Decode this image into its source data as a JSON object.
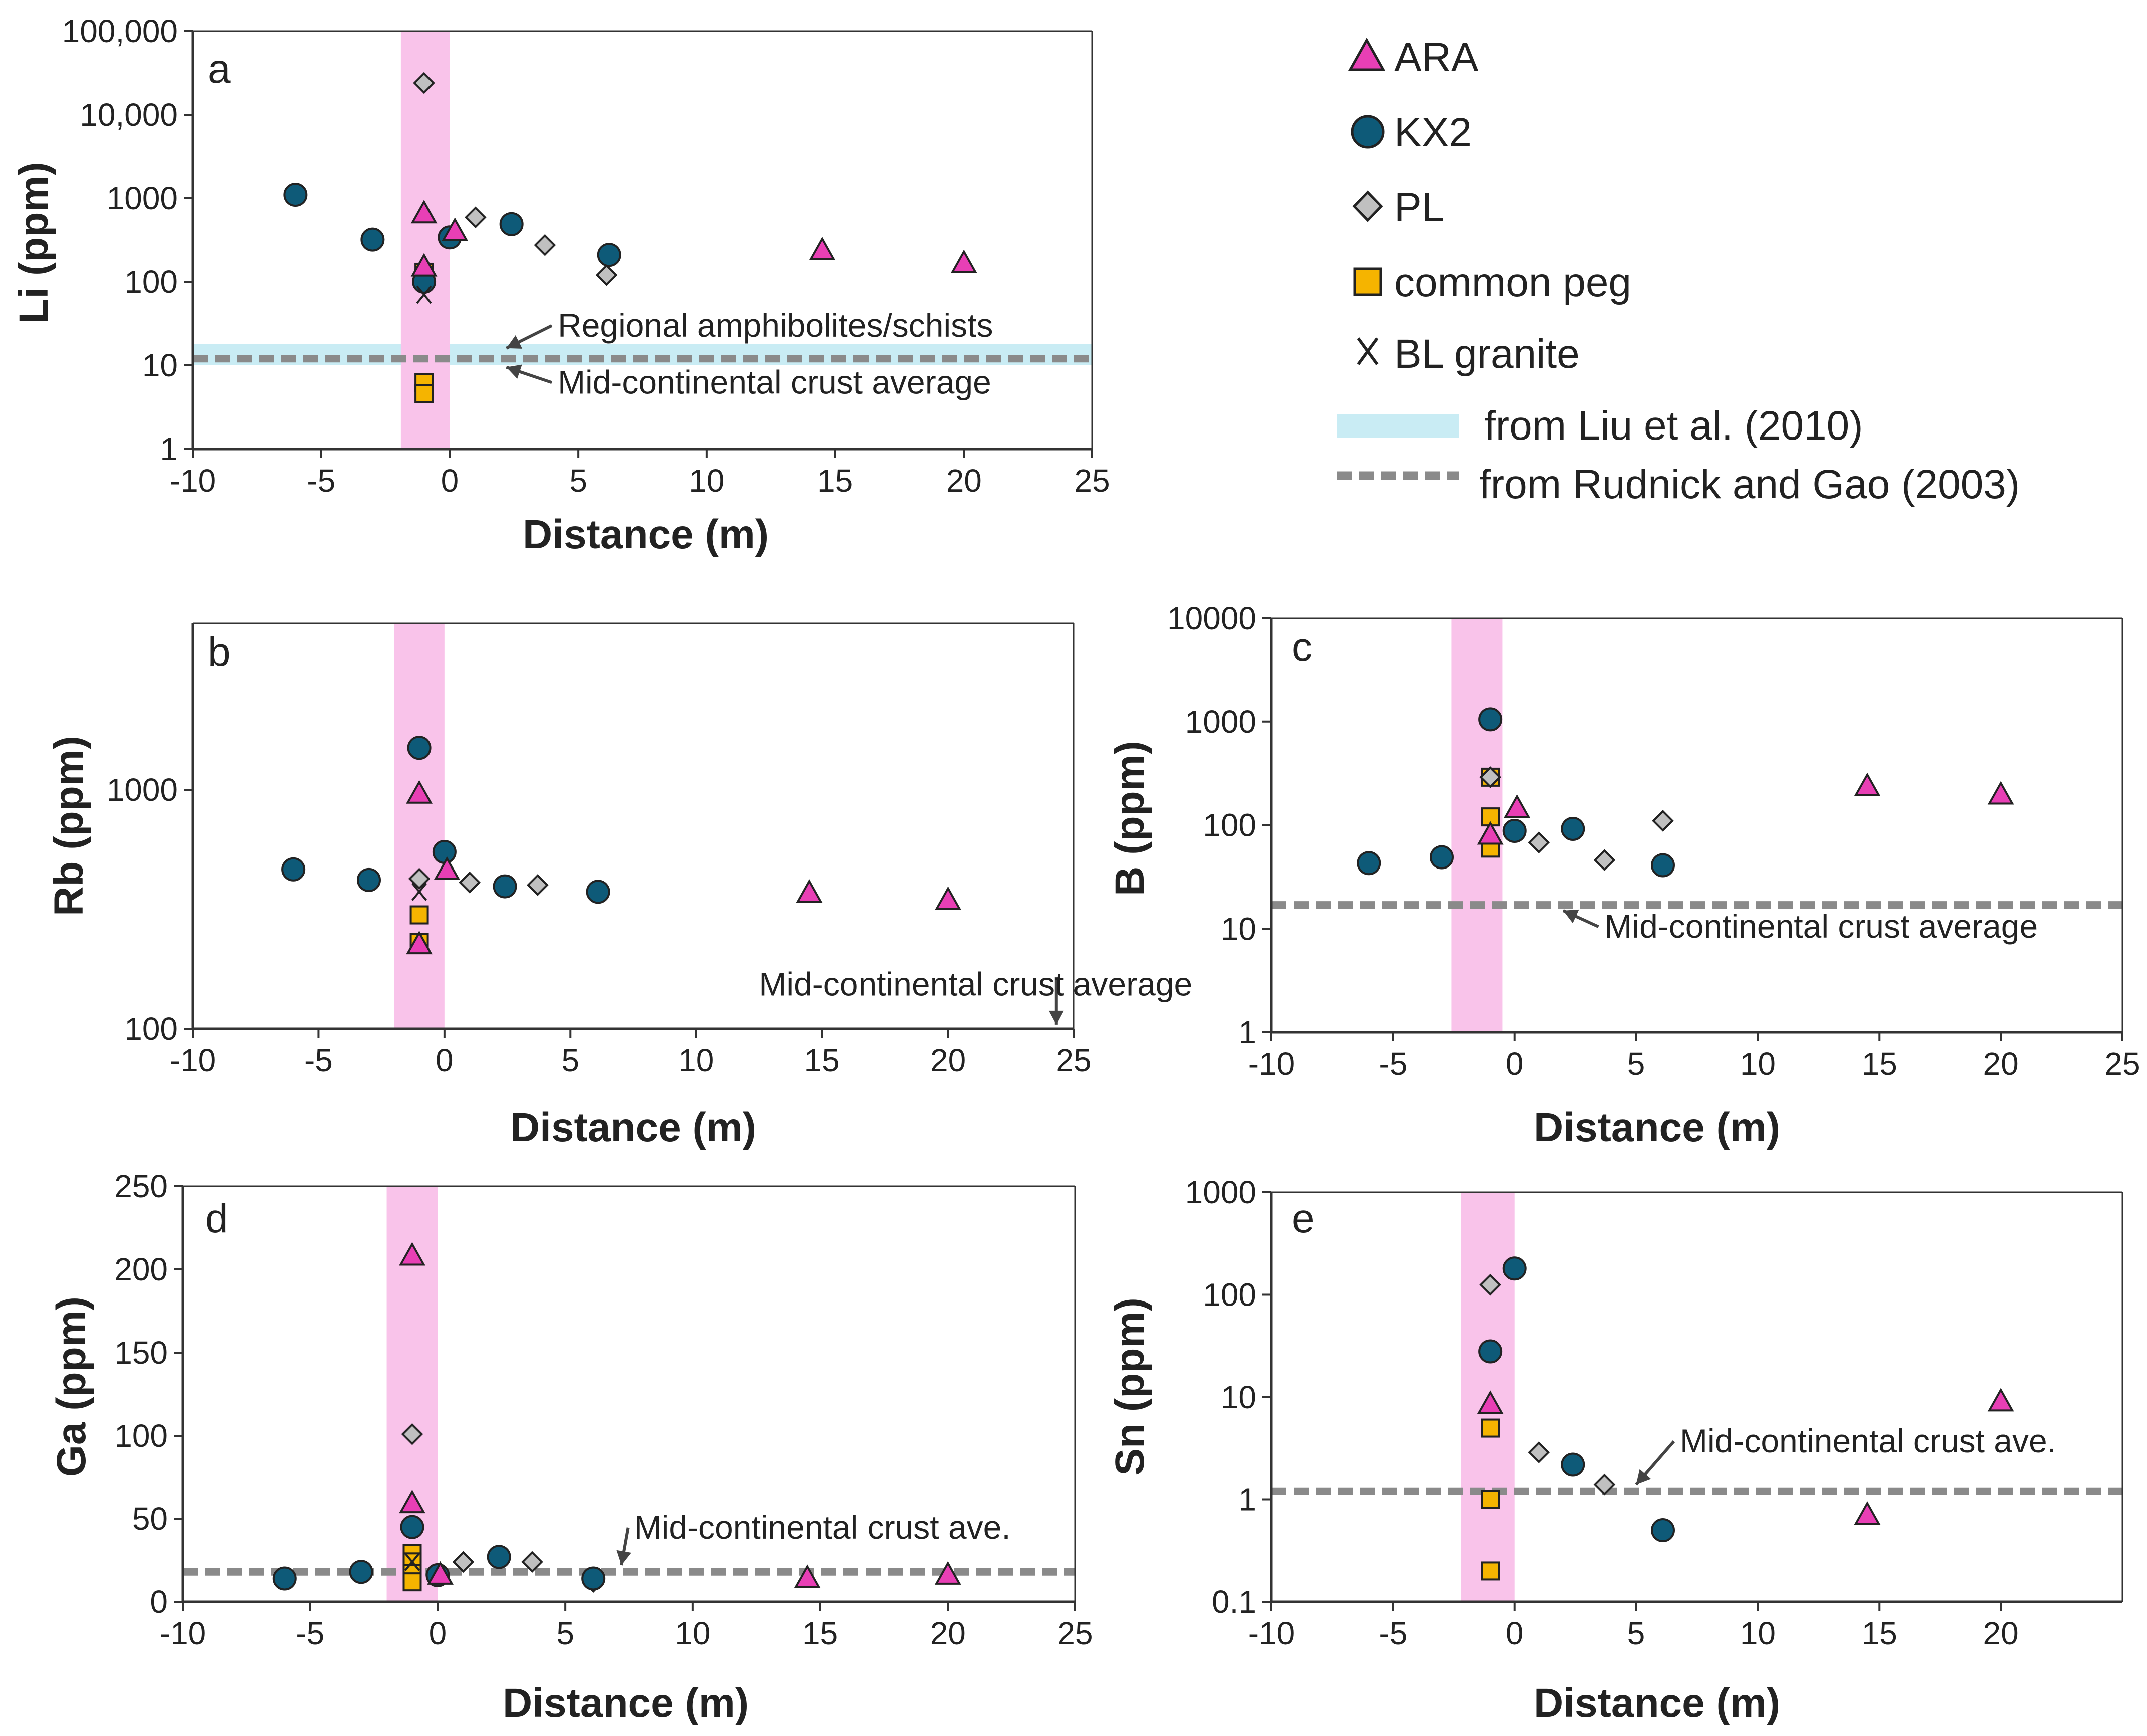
{
  "figure": {
    "legend": {
      "items": [
        {
          "key": "ARA",
          "label": "ARA",
          "marker": "triangle",
          "color": "#e83fb5"
        },
        {
          "key": "KX2",
          "label": "KX2",
          "marker": "circle",
          "color": "#0e5a78"
        },
        {
          "key": "PL",
          "label": "PL",
          "marker": "diamond",
          "color": "#c0c0c0"
        },
        {
          "key": "PEG",
          "label": "common peg",
          "marker": "square",
          "color": "#f5b400"
        },
        {
          "key": "BL",
          "label": "BL granite",
          "marker": "x",
          "color": "#222222"
        }
      ],
      "band_label": "from Liu et al. (2010)",
      "dash_label": "from Rudnick and Gao (2003)"
    },
    "colors": {
      "pegmatite_band": "#f9c3ea",
      "liu_band": "#c9ecf4",
      "rudnick_line": "#8a8a8a",
      "axis": "#333333"
    }
  },
  "chart_data": [
    {
      "id": "a",
      "panel_label": "a",
      "type": "scatter",
      "xlabel": "Distance (m)",
      "ylabel": "Li (ppm)",
      "yscale": "log",
      "xlim": [
        -10,
        25
      ],
      "ylim": [
        1,
        100000
      ],
      "xticks": [
        -10,
        -5,
        0,
        5,
        10,
        15,
        20,
        25
      ],
      "xtick_labels": [
        "-10",
        "-5",
        "0",
        "5",
        "10",
        "15",
        "20",
        "25"
      ],
      "yticks": [
        1,
        10,
        100,
        1000,
        10000,
        100000
      ],
      "ytick_labels": [
        "1",
        "10",
        "100",
        "1000",
        "10,000",
        "100,000"
      ],
      "pegmatite_band": [
        -1.9,
        0
      ],
      "liu_band": [
        10,
        18
      ],
      "rudnick_line": 12,
      "annotations": [
        {
          "text": "Regional amphibolites/schists",
          "x": 4.2,
          "y": 22,
          "arrow_to": [
            2.2,
            16
          ]
        },
        {
          "text": "Mid-continental crust average",
          "x": 4.2,
          "y": 4.6,
          "arrow_to": [
            2.2,
            9.5
          ]
        }
      ],
      "series": [
        {
          "name": "ARA",
          "points": [
            [
              -1,
              650
            ],
            [
              -1,
              150
            ],
            [
              0.2,
              400
            ],
            [
              14.5,
              235
            ],
            [
              20,
              165
            ]
          ]
        },
        {
          "name": "KX2",
          "points": [
            [
              -6,
              1100
            ],
            [
              -3,
              320
            ],
            [
              -1,
              100
            ],
            [
              0,
              340
            ],
            [
              2.4,
              490
            ],
            [
              6.2,
              210
            ]
          ]
        },
        {
          "name": "PL",
          "points": [
            [
              -1,
              24000
            ],
            [
              1,
              590
            ],
            [
              3.7,
              275
            ],
            [
              6.1,
              120
            ]
          ]
        },
        {
          "name": "PEG",
          "points": [
            [
              -1,
              130
            ],
            [
              -1,
              110
            ],
            [
              -1,
              6.2
            ],
            [
              -1,
              4.6
            ]
          ]
        },
        {
          "name": "BL",
          "points": [
            [
              -1,
              70
            ]
          ]
        }
      ]
    },
    {
      "id": "b",
      "panel_label": "b",
      "type": "scatter",
      "xlabel": "Distance (m)",
      "ylabel": "Rb (ppm)",
      "yscale": "log",
      "xlim": [
        -10,
        25
      ],
      "ylim": [
        100,
        5000
      ],
      "xticks": [
        -10,
        -5,
        0,
        5,
        10,
        15,
        20,
        25
      ],
      "xtick_labels": [
        "-10",
        "-5",
        "0",
        "5",
        "10",
        "15",
        "20",
        "25"
      ],
      "yticks": [
        100,
        1000
      ],
      "ytick_labels": [
        "100",
        "1000"
      ],
      "pegmatite_band": [
        -2,
        0
      ],
      "annotations": [
        {
          "text": "Mid-continental crust average",
          "x": 12.5,
          "y": 138,
          "arrow_to": [
            24.3,
            104
          ],
          "arrow_from": [
            24.3,
            165
          ]
        }
      ],
      "series": [
        {
          "name": "ARA",
          "points": [
            [
              -1,
              960
            ],
            [
              0.1,
              460
            ],
            [
              -1,
              225
            ],
            [
              14.5,
              370
            ],
            [
              20,
              345
            ]
          ]
        },
        {
          "name": "KX2",
          "points": [
            [
              -6,
              465
            ],
            [
              -3,
              420
            ],
            [
              -1,
              1500
            ],
            [
              0,
              550
            ],
            [
              2.4,
              395
            ],
            [
              6.1,
              375
            ]
          ]
        },
        {
          "name": "PL",
          "points": [
            [
              -1,
              425
            ],
            [
              1,
              410
            ],
            [
              3.7,
              400
            ],
            [
              6.1,
              370
            ]
          ]
        },
        {
          "name": "PEG",
          "points": [
            [
              -1,
              300
            ],
            [
              -1,
              230
            ]
          ]
        },
        {
          "name": "BL",
          "points": [
            [
              -1,
              375
            ]
          ]
        }
      ]
    },
    {
      "id": "c",
      "panel_label": "c",
      "type": "scatter",
      "xlabel": "Distance (m)",
      "ylabel": "B (ppm)",
      "yscale": "log",
      "xlim": [
        -10,
        25
      ],
      "ylim": [
        1,
        10000
      ],
      "xticks": [
        -10,
        -5,
        0,
        5,
        10,
        15,
        20,
        25
      ],
      "xtick_labels": [
        "-10",
        "-5",
        "0",
        "5",
        "10",
        "15",
        "20",
        "25"
      ],
      "yticks": [
        1,
        10,
        100,
        1000,
        10000
      ],
      "ytick_labels": [
        "1",
        "10",
        "100",
        "1000",
        "10000"
      ],
      "pegmatite_band": [
        -2.6,
        -0.5
      ],
      "rudnick_line": 17,
      "annotations": [
        {
          "text": "Mid-continental crust average",
          "x": 3.7,
          "y": 8.2,
          "arrow_to": [
            2,
            15
          ]
        }
      ],
      "series": [
        {
          "name": "ARA",
          "points": [
            [
              -1,
              80
            ],
            [
              0.1,
              145
            ],
            [
              14.5,
              235
            ],
            [
              20,
              195
            ]
          ]
        },
        {
          "name": "KX2",
          "points": [
            [
              -6,
              43
            ],
            [
              -3,
              49
            ],
            [
              -1,
              1050
            ],
            [
              0,
              88
            ],
            [
              2.4,
              92
            ],
            [
              6.1,
              41
            ]
          ]
        },
        {
          "name": "PL",
          "points": [
            [
              -1,
              290
            ],
            [
              1,
              68
            ],
            [
              3.7,
              46
            ],
            [
              6.1,
              110
            ]
          ]
        },
        {
          "name": "PEG",
          "points": [
            [
              -1,
              290
            ],
            [
              -1,
              120
            ],
            [
              -1,
              60
            ]
          ]
        },
        {
          "name": "BL",
          "points": []
        }
      ]
    },
    {
      "id": "d",
      "panel_label": "d",
      "type": "scatter",
      "xlabel": "Distance (m)",
      "ylabel": "Ga (ppm)",
      "yscale": "linear",
      "xlim": [
        -10,
        25
      ],
      "ylim": [
        0,
        250
      ],
      "xticks": [
        -10,
        -5,
        0,
        5,
        10,
        15,
        20,
        25
      ],
      "xtick_labels": [
        "-10",
        "-5",
        "0",
        "5",
        "10",
        "15",
        "20",
        "25"
      ],
      "yticks": [
        0,
        50,
        100,
        150,
        200,
        250
      ],
      "ytick_labels": [
        "0",
        "50",
        "100",
        "150",
        "200",
        "250"
      ],
      "pegmatite_band": [
        -2,
        0
      ],
      "rudnick_line": 18,
      "annotations": [
        {
          "text": "Mid-continental crust ave.",
          "x": 7.7,
          "y": 38,
          "arrow_to": [
            7.2,
            22
          ]
        }
      ],
      "series": [
        {
          "name": "ARA",
          "points": [
            [
              -1,
              208
            ],
            [
              -1,
              59
            ],
            [
              0.1,
              16
            ],
            [
              14.5,
              14
            ],
            [
              20,
              16
            ]
          ]
        },
        {
          "name": "KX2",
          "points": [
            [
              -6,
              14
            ],
            [
              -3,
              18
            ],
            [
              -1,
              45
            ],
            [
              0,
              16
            ],
            [
              2.4,
              27
            ],
            [
              6.1,
              14
            ]
          ]
        },
        {
          "name": "PL",
          "points": [
            [
              -1,
              101
            ],
            [
              1,
              24
            ],
            [
              3.7,
              24
            ],
            [
              6.1,
              12
            ]
          ]
        },
        {
          "name": "PEG",
          "points": [
            [
              -1,
              29
            ],
            [
              -1,
              24
            ],
            [
              -1,
              17
            ],
            [
              -1,
              12
            ]
          ]
        },
        {
          "name": "BL",
          "points": [
            [
              -1,
              24
            ]
          ]
        }
      ]
    },
    {
      "id": "e",
      "panel_label": "e",
      "type": "scatter",
      "xlabel": "Distance (m)",
      "ylabel": "Sn (ppm)",
      "yscale": "log",
      "xlim": [
        -10,
        25
      ],
      "ylim": [
        0.1,
        1000
      ],
      "xticks": [
        -10,
        -5,
        0,
        5,
        10,
        15,
        20
      ],
      "xtick_labels": [
        "-10",
        "-5",
        "0",
        "5",
        "10",
        "15",
        "20"
      ],
      "yticks": [
        0.1,
        1,
        10,
        100,
        1000
      ],
      "ytick_labels": [
        "0.1",
        "1",
        "10",
        "100",
        "1000"
      ],
      "pegmatite_band": [
        -2.2,
        0
      ],
      "rudnick_line": 1.2,
      "annotations": [
        {
          "text": "Mid-continental crust ave.",
          "x": 6.8,
          "y": 2.9,
          "arrow_to": [
            5,
            1.4
          ]
        }
      ],
      "series": [
        {
          "name": "ARA",
          "points": [
            [
              -1,
              8.5
            ],
            [
              14.5,
              0.7
            ],
            [
              20,
              9
            ]
          ]
        },
        {
          "name": "KX2",
          "points": [
            [
              -1,
              28
            ],
            [
              0,
              180
            ],
            [
              2.4,
              2.2
            ],
            [
              6.1,
              0.5
            ]
          ]
        },
        {
          "name": "PL",
          "points": [
            [
              -1,
              125
            ],
            [
              1,
              2.9
            ],
            [
              3.7,
              1.4
            ],
            [
              6.1,
              0.5
            ]
          ]
        },
        {
          "name": "PEG",
          "points": [
            [
              -1,
              5
            ],
            [
              -1,
              1
            ],
            [
              -1,
              0.2
            ]
          ]
        },
        {
          "name": "BL",
          "points": []
        }
      ]
    }
  ]
}
